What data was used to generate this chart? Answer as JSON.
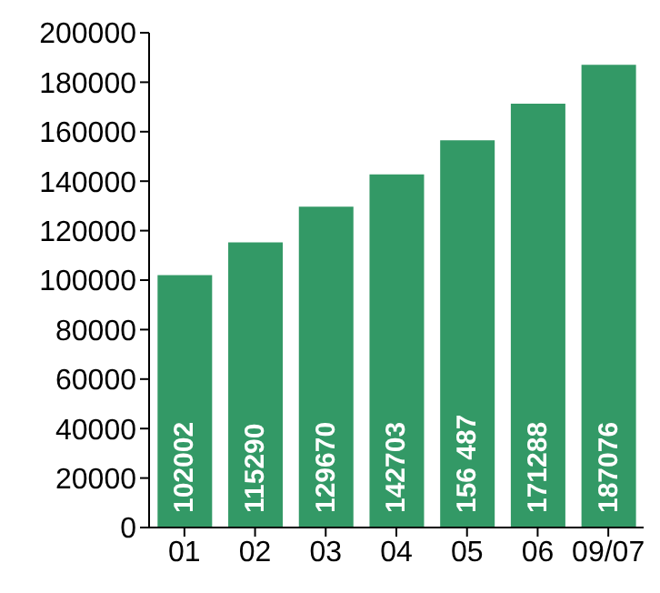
{
  "chart_data": {
    "type": "bar",
    "categories": [
      "01",
      "02",
      "03",
      "04",
      "05",
      "06",
      "09/07"
    ],
    "values": [
      102002,
      115290,
      129670,
      142703,
      156487,
      171288,
      187076
    ],
    "value_labels": [
      "102002",
      "115290",
      "129670",
      "142703",
      "156 487",
      "171288",
      "187076"
    ],
    "color": "#339966",
    "ylim": [
      0,
      200000
    ],
    "yticks": [
      0,
      20000,
      40000,
      60000,
      80000,
      100000,
      120000,
      140000,
      160000,
      180000,
      200000
    ],
    "grid": false,
    "legend": false
  }
}
